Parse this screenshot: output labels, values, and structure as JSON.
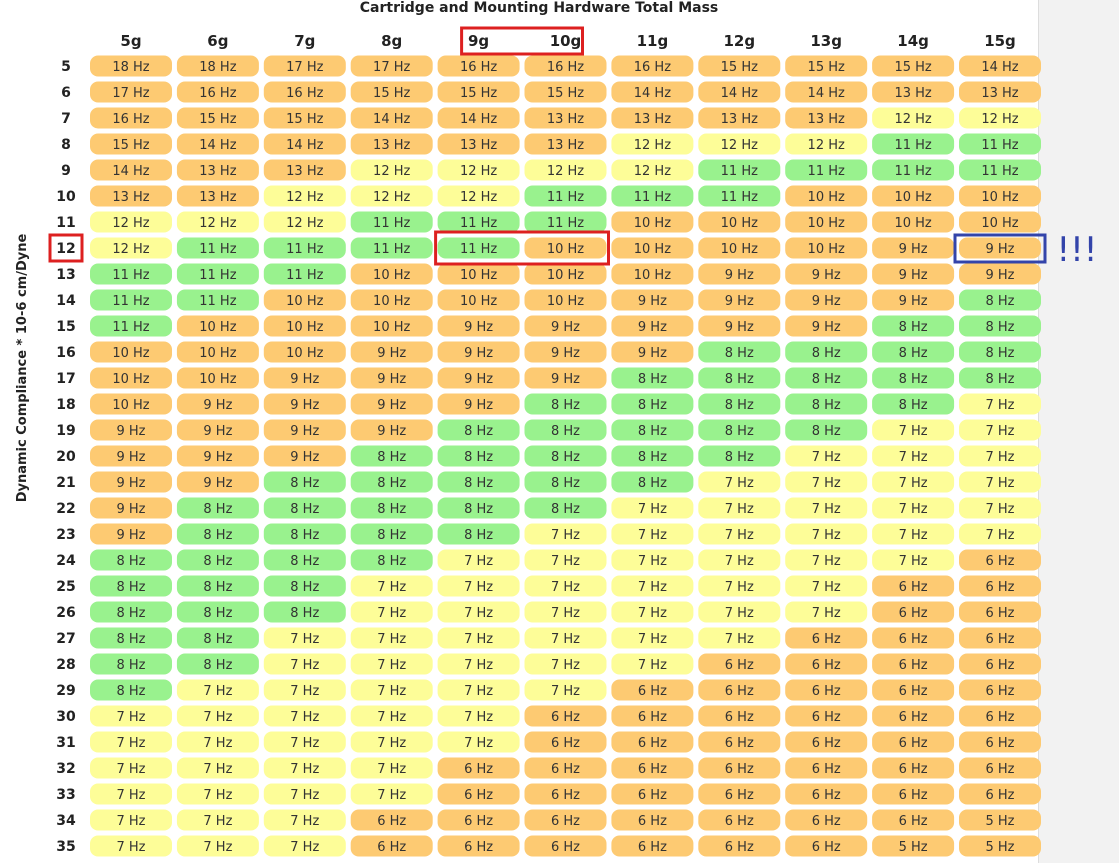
{
  "chart_data": {
    "type": "table",
    "title": "Cartridge and Mounting Hardware Total Mass",
    "ylabel": "Dynamic Compliance * 10-6 cm/Dyne",
    "columns": [
      "5g",
      "6g",
      "7g",
      "8g",
      "9g",
      "10g",
      "11g",
      "12g",
      "13g",
      "14g",
      "15g"
    ],
    "rows": [
      "5",
      "6",
      "7",
      "8",
      "9",
      "10",
      "11",
      "12",
      "13",
      "14",
      "15",
      "16",
      "17",
      "18",
      "19",
      "20",
      "21",
      "22",
      "23",
      "24",
      "25",
      "26",
      "27",
      "28",
      "29",
      "30",
      "31",
      "32",
      "33",
      "34",
      "35"
    ],
    "unit": "Hz",
    "values": [
      [
        18,
        18,
        17,
        17,
        16,
        16,
        16,
        15,
        15,
        15,
        14
      ],
      [
        17,
        16,
        16,
        15,
        15,
        15,
        14,
        14,
        14,
        13,
        13
      ],
      [
        16,
        15,
        15,
        14,
        14,
        13,
        13,
        13,
        13,
        12,
        12
      ],
      [
        15,
        14,
        14,
        13,
        13,
        13,
        12,
        12,
        12,
        11,
        11
      ],
      [
        14,
        13,
        13,
        12,
        12,
        12,
        12,
        11,
        11,
        11,
        11
      ],
      [
        13,
        13,
        12,
        12,
        12,
        11,
        11,
        11,
        10,
        10,
        10
      ],
      [
        12,
        12,
        12,
        11,
        11,
        11,
        10,
        10,
        10,
        10,
        10
      ],
      [
        12,
        11,
        11,
        11,
        11,
        10,
        10,
        10,
        10,
        9,
        9
      ],
      [
        11,
        11,
        11,
        10,
        10,
        10,
        10,
        9,
        9,
        9,
        9
      ],
      [
        11,
        11,
        10,
        10,
        10,
        10,
        9,
        9,
        9,
        9,
        8
      ],
      [
        11,
        10,
        10,
        10,
        9,
        9,
        9,
        9,
        9,
        8,
        8
      ],
      [
        10,
        10,
        10,
        9,
        9,
        9,
        9,
        8,
        8,
        8,
        8
      ],
      [
        10,
        10,
        9,
        9,
        9,
        9,
        8,
        8,
        8,
        8,
        8
      ],
      [
        10,
        9,
        9,
        9,
        9,
        8,
        8,
        8,
        8,
        8,
        7
      ],
      [
        9,
        9,
        9,
        9,
        8,
        8,
        8,
        8,
        8,
        7,
        7
      ],
      [
        9,
        9,
        9,
        8,
        8,
        8,
        8,
        8,
        7,
        7,
        7
      ],
      [
        9,
        9,
        8,
        8,
        8,
        8,
        8,
        7,
        7,
        7,
        7
      ],
      [
        9,
        8,
        8,
        8,
        8,
        8,
        7,
        7,
        7,
        7,
        7
      ],
      [
        9,
        8,
        8,
        8,
        8,
        7,
        7,
        7,
        7,
        7,
        7
      ],
      [
        8,
        8,
        8,
        8,
        7,
        7,
        7,
        7,
        7,
        7,
        6
      ],
      [
        8,
        8,
        8,
        7,
        7,
        7,
        7,
        7,
        7,
        6,
        6
      ],
      [
        8,
        8,
        8,
        7,
        7,
        7,
        7,
        7,
        7,
        6,
        6
      ],
      [
        8,
        8,
        7,
        7,
        7,
        7,
        7,
        7,
        6,
        6,
        6
      ],
      [
        8,
        8,
        7,
        7,
        7,
        7,
        7,
        6,
        6,
        6,
        6
      ],
      [
        8,
        7,
        7,
        7,
        7,
        7,
        6,
        6,
        6,
        6,
        6
      ],
      [
        7,
        7,
        7,
        7,
        7,
        6,
        6,
        6,
        6,
        6,
        6
      ],
      [
        7,
        7,
        7,
        7,
        7,
        6,
        6,
        6,
        6,
        6,
        6
      ],
      [
        7,
        7,
        7,
        7,
        6,
        6,
        6,
        6,
        6,
        6,
        6
      ],
      [
        7,
        7,
        7,
        7,
        6,
        6,
        6,
        6,
        6,
        6,
        6
      ],
      [
        7,
        7,
        7,
        6,
        6,
        6,
        6,
        6,
        6,
        6,
        5
      ],
      [
        7,
        7,
        7,
        6,
        6,
        6,
        6,
        6,
        6,
        5,
        5
      ]
    ],
    "color_bands": {
      "green": [
        8,
        11
      ],
      "yellow": [
        7,
        12
      ],
      "orange": [
        6,
        13,
        14,
        15,
        16,
        17,
        18,
        5
      ]
    },
    "highlights": {
      "red_columns": [
        "9g",
        "10g"
      ],
      "red_row": "12",
      "red_cells": {
        "row": "12",
        "columns": [
          "9g",
          "10g"
        ]
      },
      "blue_cell": {
        "row": "12",
        "column": "15g"
      }
    }
  },
  "annotation": {
    "text": "!!!"
  },
  "colors": {
    "green": "#99f28e",
    "yellow": "#fdfd98",
    "orange": "#fdca72",
    "highlight_red": "#dd2020",
    "highlight_blue": "#3344aa",
    "scrollbar_track": "#f2f2f2",
    "scrollbar_border": "#dddddd"
  }
}
